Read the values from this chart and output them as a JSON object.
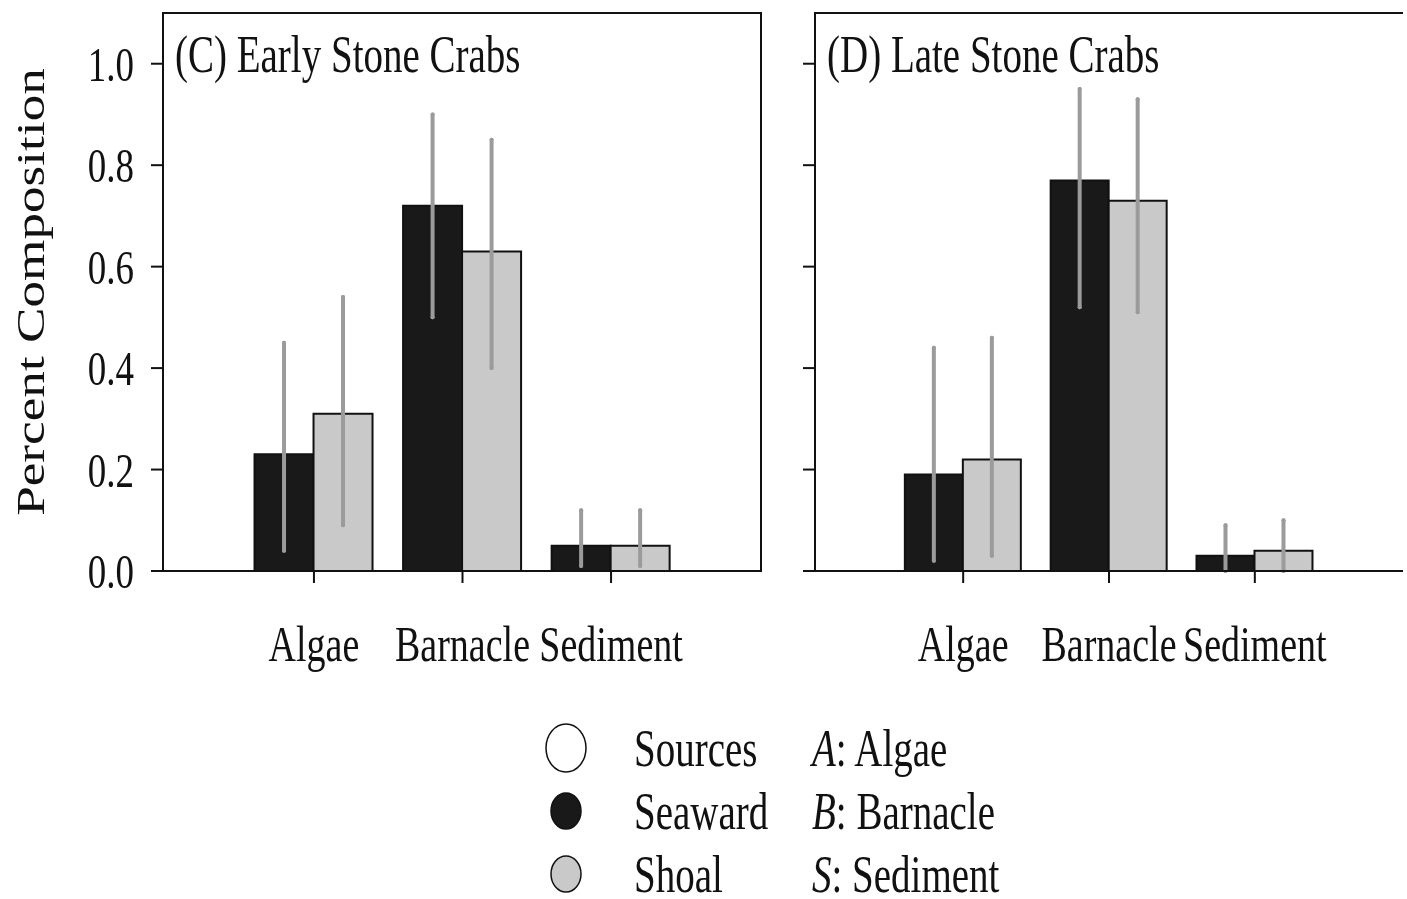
{
  "chart_data": [
    {
      "type": "bar",
      "title": "(C) Early Stone Crabs",
      "ylabel": "Percent Composition",
      "categories": [
        "Algae",
        "Barnacle",
        "Sediment"
      ],
      "series": [
        {
          "name": "Seaward",
          "color": "#191919",
          "values": [
            0.23,
            0.72,
            0.05
          ],
          "errors": [
            [
              0.04,
              0.45
            ],
            [
              0.5,
              0.9
            ],
            [
              0.01,
              0.12
            ]
          ]
        },
        {
          "name": "Shoal",
          "color": "#c9c9c9",
          "values": [
            0.31,
            0.63,
            0.05
          ],
          "errors": [
            [
              0.09,
              0.54
            ],
            [
              0.4,
              0.85
            ],
            [
              0.01,
              0.12
            ]
          ]
        }
      ],
      "ylim": [
        0,
        1.1
      ],
      "yticks": [
        {
          "value": 0,
          "label": "0.0"
        },
        0.2,
        0.4,
        0.6,
        0.8,
        {
          "value": 1,
          "label": "1.0"
        }
      ],
      "legend": "bottom",
      "annotations": [
        "Sources",
        "A: Algae",
        "B: Barnacle",
        "S: Sediment"
      ]
    },
    {
      "type": "bar",
      "title": "(D) Late Stone Crabs",
      "categories": [
        "Algae",
        "Barnacle",
        "Sediment"
      ],
      "series": [
        {
          "name": "Seaward",
          "color": "#191919",
          "values": [
            0.19,
            0.77,
            0.03
          ],
          "errors": [
            [
              0.02,
              0.44
            ],
            [
              0.52,
              0.95
            ],
            [
              0,
              0.09
            ]
          ]
        },
        {
          "name": "Shoal",
          "color": "#c9c9c9",
          "values": [
            0.22,
            0.73,
            0.04
          ],
          "errors": [
            [
              0.03,
              0.46
            ],
            [
              0.51,
              0.93
            ],
            [
              0,
              0.1
            ]
          ]
        }
      ],
      "ylim": [
        0,
        1.1
      ],
      "yticks": [
        0,
        0.2,
        0.4,
        0.6,
        0.8,
        1
      ],
      "tick_labels": "x",
      "legend": "bottom"
    }
  ]
}
